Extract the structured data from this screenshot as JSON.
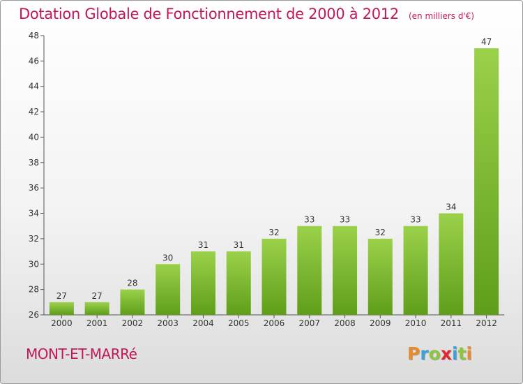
{
  "title": "Dotation Globale de Fonctionnement de 2000 à 2012",
  "subtitle": "(en milliers d'€)",
  "commune": "MONT-ET-MARRé",
  "logo": {
    "letters": [
      "P",
      "r",
      "o",
      "x",
      "i",
      "t",
      "i"
    ],
    "colors": [
      "#e8892a",
      "#3aa1d8",
      "#8cc63f",
      "#e3262d",
      "#3aa1d8",
      "#8cc63f",
      "#e8892a"
    ]
  },
  "chart_data": {
    "type": "bar",
    "categories": [
      "2000",
      "2001",
      "2002",
      "2003",
      "2004",
      "2005",
      "2006",
      "2007",
      "2008",
      "2009",
      "2010",
      "2011",
      "2012"
    ],
    "values": [
      27,
      27,
      28,
      30,
      31,
      31,
      32,
      33,
      33,
      32,
      33,
      34,
      47
    ],
    "data_labels": [
      "27",
      "27",
      "28",
      "30",
      "31",
      "31",
      "32",
      "33",
      "33",
      "32",
      "33",
      "34",
      "47"
    ],
    "yticks": [
      26,
      28,
      30,
      32,
      34,
      36,
      38,
      40,
      42,
      44,
      46,
      48
    ],
    "ylim": [
      26,
      48
    ],
    "grid": false,
    "bar_color_top": "#9bd14a",
    "bar_color_bottom": "#5f9e1a"
  }
}
